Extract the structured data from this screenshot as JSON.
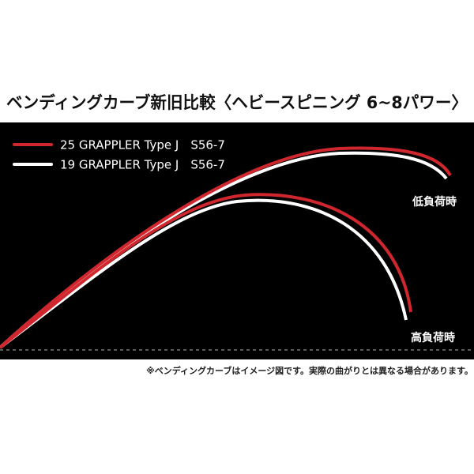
{
  "title": "ベンディングカーブ新旧比較〈ヘビースピニング 6~8パワー〉",
  "legend": [
    {
      "label": "25 GRAPPLER Type J　S56-7"
    },
    {
      "label": "19 GRAPPLER Type J　S56-7"
    }
  ],
  "annotations": {
    "low_load": "低負荷時",
    "high_load": "高負荷時"
  },
  "footnote": "※ベンディングカーブはイメージ図です。実際の曲がりとは異なる場合があります。"
}
